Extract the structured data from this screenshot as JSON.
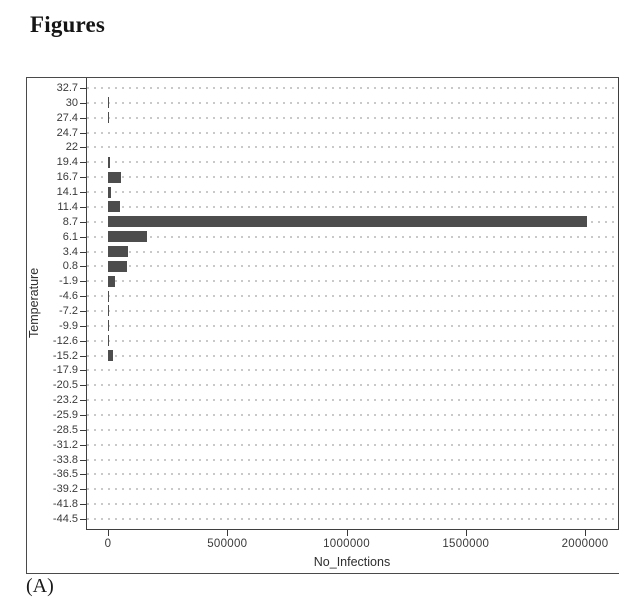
{
  "page": {
    "heading": "Figures",
    "caption": "(A)"
  },
  "chart_data": {
    "type": "bar",
    "orientation": "horizontal",
    "title": "",
    "xlabel": "No_Infections",
    "ylabel": "Temperature",
    "categories": [
      "32.7",
      "30",
      "27.4",
      "24.7",
      "22",
      "19.4",
      "16.7",
      "14.1",
      "11.4",
      "8.7",
      "6.1",
      "3.4",
      "0.8",
      "-1.9",
      "-4.6",
      "-7.2",
      "-9.9",
      "-12.6",
      "-15.2",
      "-17.9",
      "-20.5",
      "-23.2",
      "-25.9",
      "-28.5",
      "-31.2",
      "-33.8",
      "-36.5",
      "-39.2",
      "-41.8",
      "-44.5"
    ],
    "values": [
      0,
      2000,
      2000,
      0,
      0,
      8000,
      53000,
      13000,
      50000,
      2010000,
      165000,
      84000,
      78000,
      29000,
      6000,
      4000,
      4000,
      6000,
      19000,
      0,
      0,
      0,
      0,
      0,
      0,
      0,
      0,
      0,
      0,
      0
    ],
    "x_ticks": [
      0,
      500000,
      1000000,
      1500000,
      2000000
    ],
    "x_tick_labels": [
      "0",
      "500000",
      "1000000",
      "1500000",
      "2000000"
    ],
    "xlim": [
      -92000,
      2138000
    ],
    "grid": "dotted-horizontal",
    "legend": "none",
    "bar_color": "#4d4d4d",
    "panel_border_color": "#3f3f3f",
    "grid_color": "#c9c9c9",
    "text_color": "#3a3a3a"
  }
}
